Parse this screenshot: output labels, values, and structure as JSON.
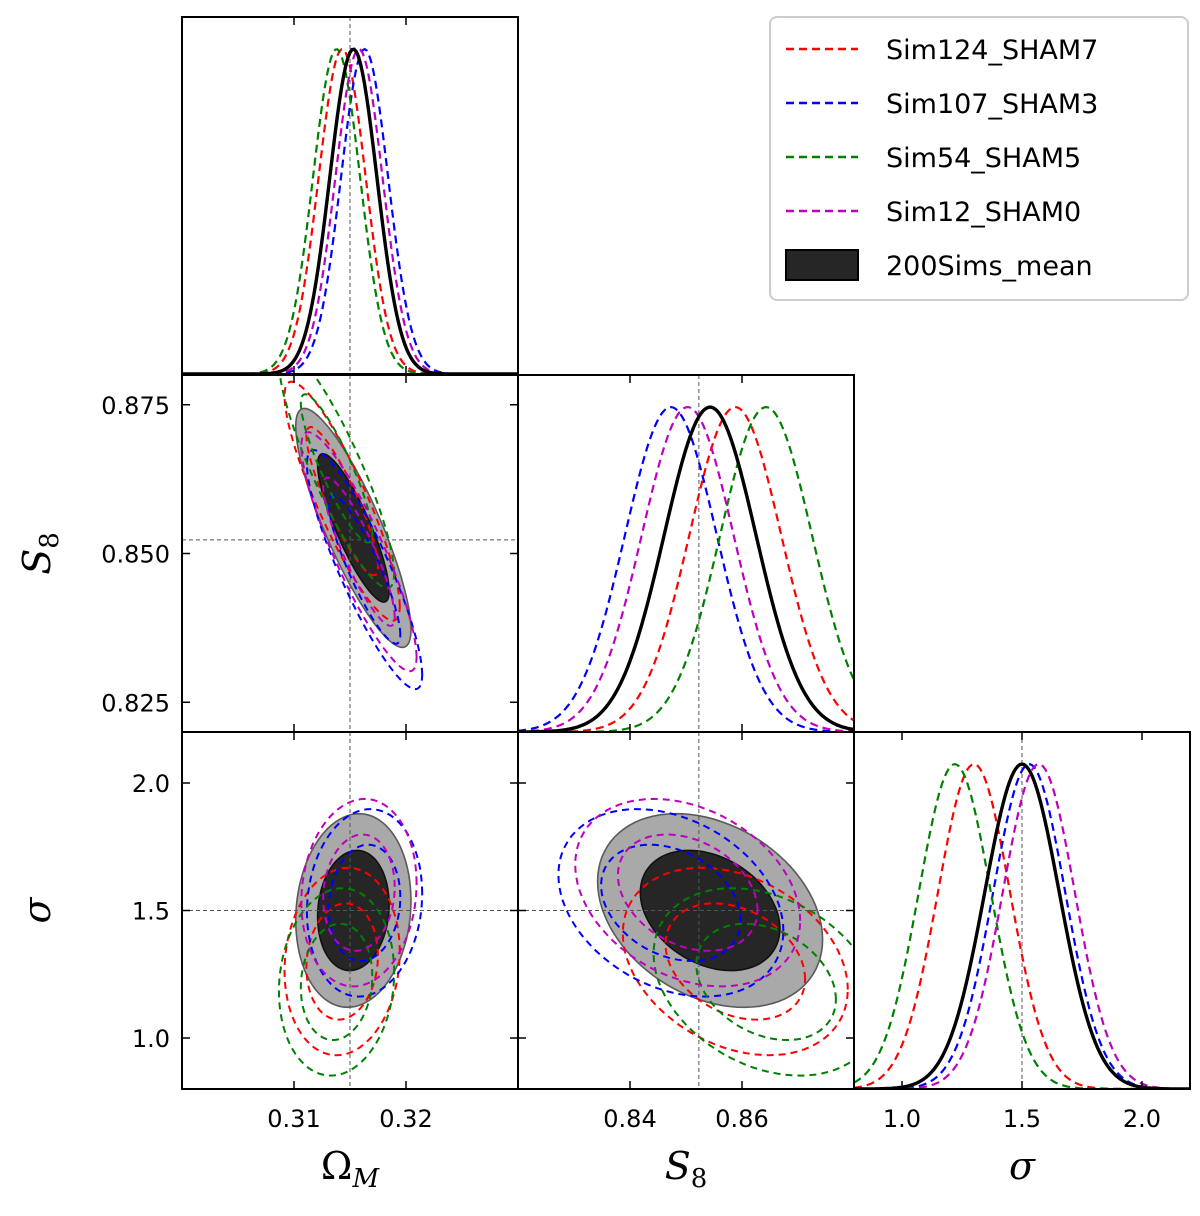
{
  "chart_data": {
    "type": "corner",
    "parameters": [
      {
        "key": "om",
        "label": "Ω",
        "sub": "M",
        "range": [
          0.3,
          0.33
        ],
        "ticks": [
          "0.31",
          "0.32"
        ],
        "ytick_values": [],
        "truth": 0.315
      },
      {
        "key": "s8",
        "label": "S",
        "sub": "8",
        "range": [
          0.82,
          0.88
        ],
        "ticks": [
          "0.84",
          "0.86"
        ],
        "ytick_values": [
          "0.825",
          "0.850",
          "0.875"
        ],
        "truth": 0.8523
      },
      {
        "key": "sig",
        "label": "σ",
        "sub": "",
        "range": [
          0.8,
          2.2
        ],
        "ticks": [
          "1.0",
          "1.5",
          "2.0"
        ],
        "ytick_values": [
          "1.0",
          "1.5",
          "2.0"
        ],
        "truth": 1.5
      }
    ],
    "legend": {
      "placement": "top-right",
      "entries": [
        {
          "name": "Sim124_SHAM7",
          "color": "#ff0000",
          "style": "dashed"
        },
        {
          "name": "Sim107_SHAM3",
          "color": "#0000ff",
          "style": "dashed"
        },
        {
          "name": "Sim54_SHAM5",
          "color": "#008000",
          "style": "dashed"
        },
        {
          "name": "Sim12_SHAM0",
          "color": "#bf00bf",
          "style": "dashed"
        },
        {
          "name": "200Sims_mean",
          "color": "#262626",
          "style": "filled"
        }
      ]
    },
    "series": [
      {
        "name": "Sim124_SHAM7",
        "color": "#ff0000",
        "style": "dashed",
        "mean": {
          "om": 0.3143,
          "s8": 0.8588,
          "sig": 1.3
        },
        "std": {
          "om": 0.0021,
          "s8": 0.0082,
          "sig": 0.15
        },
        "corr": {
          "om_s8": -0.88,
          "om_sig": 0.1,
          "s8_sig": -0.3
        }
      },
      {
        "name": "Sim107_SHAM3",
        "color": "#0000ff",
        "style": "dashed",
        "mean": {
          "om": 0.3163,
          "s8": 0.8473,
          "sig": 1.53
        },
        "std": {
          "om": 0.0021,
          "s8": 0.0082,
          "sig": 0.15
        },
        "corr": {
          "om_s8": -0.88,
          "om_sig": 0.1,
          "s8_sig": -0.3
        }
      },
      {
        "name": "Sim54_SHAM5",
        "color": "#008000",
        "style": "dashed",
        "mean": {
          "om": 0.3138,
          "s8": 0.8643,
          "sig": 1.22
        },
        "std": {
          "om": 0.0021,
          "s8": 0.0082,
          "sig": 0.15
        },
        "corr": {
          "om_s8": -0.88,
          "om_sig": 0.1,
          "s8_sig": -0.3
        }
      },
      {
        "name": "Sim12_SHAM0",
        "color": "#bf00bf",
        "style": "dashed",
        "mean": {
          "om": 0.3158,
          "s8": 0.8503,
          "sig": 1.57
        },
        "std": {
          "om": 0.0021,
          "s8": 0.0082,
          "sig": 0.15
        },
        "corr": {
          "om_s8": -0.88,
          "om_sig": 0.1,
          "s8_sig": -0.3
        }
      },
      {
        "name": "200Sims_mean",
        "color": "#000000",
        "style": "filled",
        "mean": {
          "om": 0.3153,
          "s8": 0.8543,
          "sig": 1.5
        },
        "std": {
          "om": 0.0021,
          "s8": 0.0082,
          "sig": 0.155
        },
        "corr": {
          "om_s8": -0.85,
          "om_sig": 0.1,
          "s8_sig": -0.3
        },
        "fill_inner": "#262626",
        "fill_outer": "#a9a9a9"
      }
    ]
  }
}
